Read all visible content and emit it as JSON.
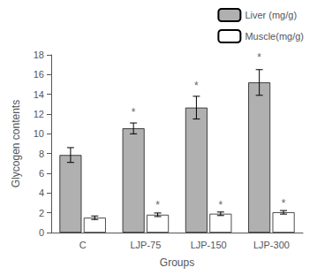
{
  "chart_data": {
    "type": "bar",
    "categories": [
      "C",
      "LJP-75",
      "LJP-150",
      "LJP-300"
    ],
    "series": [
      {
        "name": "Liver (mg/g)",
        "color": "#b0b0b0",
        "values": [
          7.85,
          10.55,
          12.65,
          15.2
        ],
        "errors": [
          0.75,
          0.55,
          1.15,
          1.3
        ]
      },
      {
        "name": "Muscle(mg/g)",
        "color": "#ffffff",
        "values": [
          1.5,
          1.8,
          1.9,
          2.05
        ],
        "errors": [
          0.18,
          0.18,
          0.18,
          0.18
        ]
      }
    ],
    "xlabel": "Groups",
    "ylabel": "Glycogen contents",
    "ylim": [
      0,
      18
    ],
    "yticks": [
      0,
      2,
      4,
      6,
      8,
      10,
      12,
      14,
      16,
      18
    ],
    "grid": false,
    "legend": "upper right",
    "annotations": [
      {
        "text": "*",
        "category": "LJP-75",
        "series": "Liver (mg/g)",
        "y": 11.6
      },
      {
        "text": "*",
        "category": "LJP-150",
        "series": "Liver (mg/g)",
        "y": 14.3
      },
      {
        "text": "*",
        "category": "LJP-300",
        "series": "Liver (mg/g)",
        "y": 17.2
      },
      {
        "text": "*",
        "category": "LJP-75",
        "series": "Muscle(mg/g)",
        "y": 2.28
      },
      {
        "text": "*",
        "category": "LJP-150",
        "series": "Muscle(mg/g)",
        "y": 2.28
      },
      {
        "text": "*",
        "category": "LJP-300",
        "series": "Muscle(mg/g)",
        "y": 2.43
      }
    ]
  }
}
